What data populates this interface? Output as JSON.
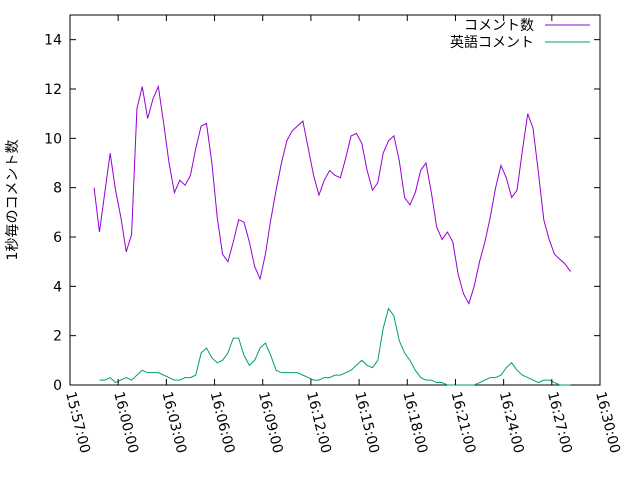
{
  "chart_data": {
    "type": "line",
    "ylabel": "1秒毎のコメント数",
    "xlabel": "",
    "ylim": [
      0,
      15
    ],
    "xlim": [
      "15:57:00",
      "16:30:00"
    ],
    "yticks": [
      0,
      2,
      4,
      6,
      8,
      10,
      12,
      14
    ],
    "xticks": [
      "15:57:00",
      "16:00:00",
      "16:03:00",
      "16:06:00",
      "16:09:00",
      "16:12:00",
      "16:15:00",
      "16:18:00",
      "16:21:00",
      "16:24:00",
      "16:27:00",
      "16:30:00"
    ],
    "grid": false,
    "legend_position": "top-right",
    "series": [
      {
        "name": "コメント数",
        "color": "#9400d3",
        "x": [
          "15:58:30",
          "15:58:50",
          "15:59:10",
          "15:59:30",
          "15:59:50",
          "16:00:10",
          "16:00:30",
          "16:00:50",
          "16:01:10",
          "16:01:30",
          "16:01:50",
          "16:02:10",
          "16:02:30",
          "16:02:50",
          "16:03:10",
          "16:03:30",
          "16:03:50",
          "16:04:10",
          "16:04:30",
          "16:04:50",
          "16:05:10",
          "16:05:30",
          "16:05:50",
          "16:06:10",
          "16:06:30",
          "16:06:50",
          "16:07:10",
          "16:07:30",
          "16:07:50",
          "16:08:10",
          "16:08:30",
          "16:08:50",
          "16:09:10",
          "16:09:30",
          "16:09:50",
          "16:10:10",
          "16:10:30",
          "16:10:50",
          "16:11:10",
          "16:11:30",
          "16:11:50",
          "16:12:10",
          "16:12:30",
          "16:12:50",
          "16:13:10",
          "16:13:30",
          "16:13:50",
          "16:14:10",
          "16:14:30",
          "16:14:50",
          "16:15:10",
          "16:15:30",
          "16:15:50",
          "16:16:10",
          "16:16:30",
          "16:16:50",
          "16:17:10",
          "16:17:30",
          "16:17:50",
          "16:18:10",
          "16:18:30",
          "16:18:50",
          "16:19:10",
          "16:19:30",
          "16:19:50",
          "16:20:10",
          "16:20:30",
          "16:20:50",
          "16:21:10",
          "16:21:30",
          "16:21:50",
          "16:22:10",
          "16:22:30",
          "16:22:50",
          "16:23:10",
          "16:23:30",
          "16:23:50",
          "16:24:10",
          "16:24:30",
          "16:24:50",
          "16:25:10",
          "16:25:30",
          "16:25:50",
          "16:26:10",
          "16:26:30",
          "16:26:50",
          "16:27:10",
          "16:27:30",
          "16:27:50",
          "16:28:10"
        ],
        "values": [
          8.0,
          6.2,
          7.8,
          9.4,
          7.9,
          6.8,
          5.4,
          6.1,
          11.2,
          12.1,
          10.8,
          11.6,
          12.1,
          10.6,
          9.0,
          7.8,
          8.3,
          8.1,
          8.5,
          9.6,
          10.5,
          10.6,
          9.0,
          6.8,
          5.3,
          5.0,
          5.8,
          6.7,
          6.6,
          5.8,
          4.8,
          4.3,
          5.3,
          6.7,
          7.9,
          9.0,
          9.9,
          10.3,
          10.5,
          10.7,
          9.6,
          8.5,
          7.7,
          8.3,
          8.7,
          8.5,
          8.4,
          9.2,
          10.1,
          10.2,
          9.8,
          8.7,
          7.9,
          8.2,
          9.4,
          9.9,
          10.1,
          9.1,
          7.6,
          7.3,
          7.8,
          8.7,
          9.0,
          7.8,
          6.4,
          5.9,
          6.2,
          5.8,
          4.5,
          3.7,
          3.3,
          4.0,
          5.0,
          5.8,
          6.8,
          8.0,
          8.9,
          8.4,
          7.6,
          7.9,
          9.5,
          11.0,
          10.4,
          8.6,
          6.7,
          5.9,
          5.3,
          5.1,
          4.9,
          4.6
        ]
      },
      {
        "name": "英語コメント",
        "color": "#009e73",
        "x": [
          "15:58:30",
          "15:58:50",
          "15:59:10",
          "15:59:30",
          "15:59:50",
          "16:00:10",
          "16:00:30",
          "16:00:50",
          "16:01:10",
          "16:01:30",
          "16:01:50",
          "16:02:10",
          "16:02:30",
          "16:02:50",
          "16:03:10",
          "16:03:30",
          "16:03:50",
          "16:04:10",
          "16:04:30",
          "16:04:50",
          "16:05:10",
          "16:05:30",
          "16:05:50",
          "16:06:10",
          "16:06:30",
          "16:06:50",
          "16:07:10",
          "16:07:30",
          "16:07:50",
          "16:08:10",
          "16:08:30",
          "16:08:50",
          "16:09:10",
          "16:09:30",
          "16:09:50",
          "16:10:10",
          "16:10:30",
          "16:10:50",
          "16:11:10",
          "16:11:30",
          "16:11:50",
          "16:12:10",
          "16:12:30",
          "16:12:50",
          "16:13:10",
          "16:13:30",
          "16:13:50",
          "16:14:10",
          "16:14:30",
          "16:14:50",
          "16:15:10",
          "16:15:30",
          "16:15:50",
          "16:16:10",
          "16:16:30",
          "16:16:50",
          "16:17:10",
          "16:17:30",
          "16:17:50",
          "16:18:10",
          "16:18:30",
          "16:18:50",
          "16:19:10",
          "16:19:30",
          "16:19:50",
          "16:20:10",
          "16:20:30",
          "16:20:50",
          "16:21:10",
          "16:21:30",
          "16:21:50",
          "16:22:10",
          "16:22:30",
          "16:22:50",
          "16:23:10",
          "16:23:30",
          "16:23:50",
          "16:24:10",
          "16:24:30",
          "16:24:50",
          "16:25:10",
          "16:25:30",
          "16:25:50",
          "16:26:10",
          "16:26:30",
          "16:26:50",
          "16:27:10",
          "16:27:30",
          "16:27:50",
          "16:28:10"
        ],
        "values": [
          null,
          0.2,
          0.2,
          0.3,
          0.1,
          0.2,
          0.3,
          0.2,
          0.4,
          0.6,
          0.5,
          0.5,
          0.5,
          0.4,
          0.3,
          0.2,
          0.2,
          0.3,
          0.3,
          0.4,
          1.3,
          1.5,
          1.1,
          0.9,
          1.0,
          1.3,
          1.9,
          1.9,
          1.2,
          0.8,
          1.0,
          1.5,
          1.7,
          1.2,
          0.6,
          0.5,
          0.5,
          0.5,
          0.5,
          0.4,
          0.3,
          0.2,
          0.2,
          0.3,
          0.3,
          0.4,
          0.4,
          0.5,
          0.6,
          0.8,
          1.0,
          0.8,
          0.7,
          1.0,
          2.3,
          3.1,
          2.8,
          1.8,
          1.3,
          1.0,
          0.6,
          0.3,
          0.2,
          0.2,
          0.1,
          0.1,
          0.0,
          0.0,
          0.0,
          0.0,
          0.0,
          0.0,
          0.1,
          0.2,
          0.3,
          0.3,
          0.4,
          0.7,
          0.9,
          0.6,
          0.4,
          0.3,
          0.2,
          0.1,
          0.2,
          0.2,
          0.1,
          0.0,
          0.0,
          0.0
        ]
      }
    ]
  }
}
